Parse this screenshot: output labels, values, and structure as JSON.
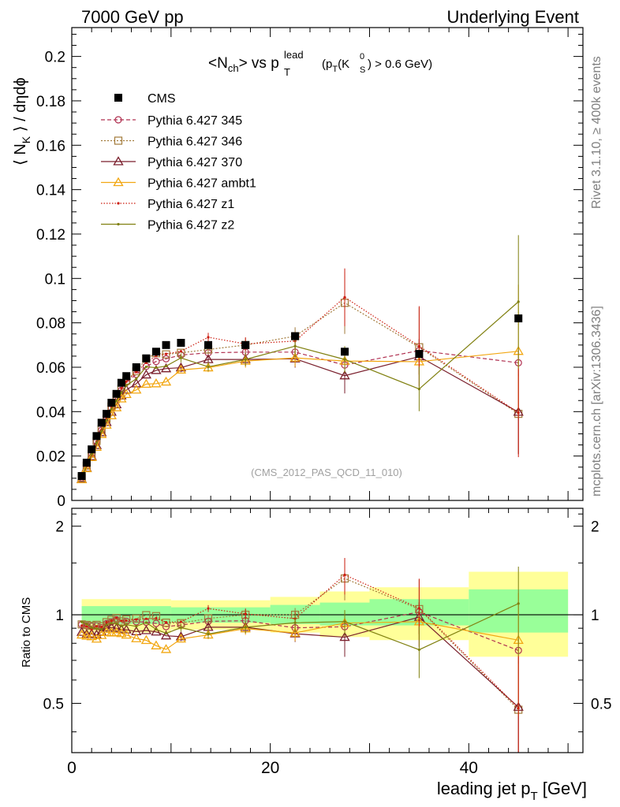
{
  "header": {
    "left": "7000 GeV pp",
    "right": "Underlying Event"
  },
  "side_text": {
    "rivet": "Rivet 3.1.10, ≥ 400k events",
    "mcplots": "mcplots.cern.ch [arXiv:1306.3436]"
  },
  "chart_data": {
    "type": "scatter",
    "title": {
      "main": "<N",
      "main_sub": "ch",
      "vs": "> vs p",
      "pt_sub": "T",
      "pt_sup": "lead",
      "cut_a": "(p",
      "cut_a_sub": "T",
      "cut_b": "(K",
      "cut_b_sup": "0",
      "cut_b_sub": "S",
      "cut_c": ") > 0.6 GeV)"
    },
    "ylabel": {
      "a": "⟨ N",
      "a_sub": "K",
      "b": " ⟩ / dηdϕ"
    },
    "xlabel": {
      "a": "leading jet p",
      "a_sub": "T",
      "b": " [GeV]"
    },
    "ratio_ylabel": "Ratio to CMS",
    "watermark": "(CMS_2012_PAS_QCD_11_010)",
    "xlim": [
      0,
      51.5
    ],
    "ylim": [
      0,
      0.213
    ],
    "ratio_ylim": [
      0.34,
      2.3
    ],
    "x_ticks": [
      "0",
      "20",
      "40"
    ],
    "y_ticks": [
      "0",
      "0.02",
      "0.04",
      "0.06",
      "0.08",
      "0.1",
      "0.12",
      "0.14",
      "0.16",
      "0.18",
      "0.2"
    ],
    "ratio_ticks": [
      "0.5",
      "1",
      "2"
    ],
    "x": [
      1,
      1.5,
      2,
      2.5,
      3,
      3.5,
      4,
      4.5,
      5,
      5.5,
      6.5,
      7.5,
      8.5,
      9.5,
      11,
      13.75,
      17.5,
      22.5,
      27.5,
      35,
      45
    ],
    "cms": [
      0.011,
      0.017,
      0.023,
      0.029,
      0.035,
      0.039,
      0.044,
      0.048,
      0.053,
      0.056,
      0.06,
      0.064,
      0.067,
      0.07,
      0.071,
      0.07,
      0.07,
      0.074,
      0.067,
      0.066,
      0.082
    ],
    "bands": [
      {
        "x0": 1,
        "x1": 10,
        "g": [
          0.93,
          1.07
        ],
        "y": [
          0.87,
          1.13
        ]
      },
      {
        "x0": 10,
        "x1": 20,
        "g": [
          0.94,
          1.06
        ],
        "y": [
          0.89,
          1.12
        ]
      },
      {
        "x0": 20,
        "x1": 25,
        "g": [
          0.93,
          1.08
        ],
        "y": [
          0.87,
          1.15
        ]
      },
      {
        "x0": 25,
        "x1": 30,
        "g": [
          0.92,
          1.1
        ],
        "y": [
          0.84,
          1.2
        ]
      },
      {
        "x0": 30,
        "x1": 40,
        "g": [
          0.92,
          1.13
        ],
        "y": [
          0.82,
          1.24
        ]
      },
      {
        "x0": 40,
        "x1": 50,
        "g": [
          0.87,
          1.22
        ],
        "y": [
          0.72,
          1.4
        ]
      }
    ],
    "series": [
      {
        "name": "Pythia 6.427 345",
        "color": "#b03050",
        "dash": "5,3",
        "marker": "circle",
        "values": [
          0.0102,
          0.0156,
          0.021,
          0.0266,
          0.0316,
          0.0364,
          0.0416,
          0.0462,
          0.0496,
          0.0532,
          0.0568,
          0.0604,
          0.0626,
          0.0638,
          0.0655,
          0.0665,
          0.0668,
          0.0668,
          0.061,
          0.0675,
          0.062
        ],
        "err": [
          0,
          0,
          0,
          0,
          0,
          0,
          0,
          0,
          0,
          0,
          0,
          0,
          0,
          0,
          0,
          0.002,
          0.003,
          0.004,
          0.004,
          0.005,
          0.006
        ]
      },
      {
        "name": "Pythia 6.427 346",
        "color": "#a27a3a",
        "dash": "2,2",
        "marker": "square",
        "values": [
          0.0102,
          0.0157,
          0.0211,
          0.0268,
          0.032,
          0.0368,
          0.0423,
          0.0468,
          0.0503,
          0.054,
          0.0582,
          0.0638,
          0.0663,
          0.0658,
          0.0665,
          0.068,
          0.07,
          0.074,
          0.089,
          0.069,
          0.039
        ],
        "err": [
          0,
          0,
          0,
          0,
          0,
          0,
          0,
          0,
          0,
          0,
          0,
          0,
          0,
          0,
          0,
          0.002,
          0.003,
          0.004,
          0.014,
          0.018,
          0.018
        ]
      },
      {
        "name": "Pythia 6.427 370",
        "color": "#7a1f2c",
        "dash": "",
        "marker": "triangle",
        "values": [
          0.0096,
          0.0146,
          0.0198,
          0.0248,
          0.0306,
          0.0352,
          0.0398,
          0.0432,
          0.0472,
          0.0498,
          0.0526,
          0.0566,
          0.0586,
          0.0594,
          0.0598,
          0.0635,
          0.0635,
          0.0638,
          0.0562,
          0.0648,
          0.0398
        ],
        "err": [
          0,
          0,
          0,
          0,
          0,
          0,
          0,
          0,
          0,
          0,
          0,
          0,
          0,
          0,
          0.002,
          0.002,
          0.003,
          0.004,
          0.008,
          0.008,
          0.019
        ]
      },
      {
        "name": "Pythia 6.427 ambt1",
        "color": "#f2a712",
        "dash": "",
        "marker": "triangle",
        "values": [
          0.0094,
          0.0144,
          0.0194,
          0.024,
          0.0298,
          0.034,
          0.0382,
          0.0418,
          0.0458,
          0.0478,
          0.0498,
          0.0524,
          0.0526,
          0.0534,
          0.0588,
          0.0598,
          0.0628,
          0.0642,
          0.0628,
          0.0625,
          0.0672
        ],
        "err": [
          0,
          0,
          0,
          0,
          0,
          0,
          0,
          0,
          0,
          0,
          0,
          0,
          0,
          0,
          0,
          0.002,
          0.003,
          0.004,
          0.005,
          0.006,
          0.03
        ]
      },
      {
        "name": "Pythia 6.427 z1",
        "color": "#cc1d10",
        "dash": "1.5,2",
        "marker": "dot",
        "values": [
          0.0101,
          0.0155,
          0.0205,
          0.0265,
          0.0318,
          0.0368,
          0.042,
          0.0468,
          0.0505,
          0.0535,
          0.0578,
          0.062,
          0.0652,
          0.066,
          0.0672,
          0.0735,
          0.0705,
          0.0718,
          0.0915,
          0.0695,
          0.0395
        ],
        "err": [
          0,
          0,
          0,
          0,
          0,
          0,
          0,
          0,
          0,
          0,
          0,
          0,
          0,
          0,
          0,
          0.002,
          0.003,
          0.004,
          0.013,
          0.018,
          0.02
        ]
      },
      {
        "name": "Pythia 6.427 z2",
        "color": "#808010",
        "dash": "",
        "marker": "dot",
        "values": [
          0.0104,
          0.0158,
          0.0208,
          0.026,
          0.0312,
          0.036,
          0.0412,
          0.0448,
          0.0485,
          0.0518,
          0.0548,
          0.0602,
          0.0598,
          0.0605,
          0.0642,
          0.0602,
          0.0635,
          0.0695,
          0.0635,
          0.0502,
          0.0895
        ],
        "err": [
          0,
          0,
          0,
          0,
          0,
          0,
          0,
          0,
          0,
          0,
          0,
          0,
          0,
          0,
          0.002,
          0.002,
          0.003,
          0.005,
          0.006,
          0.01,
          0.03
        ]
      }
    ],
    "legend": {
      "cms_label": "CMS",
      "placement": "top-left"
    }
  }
}
